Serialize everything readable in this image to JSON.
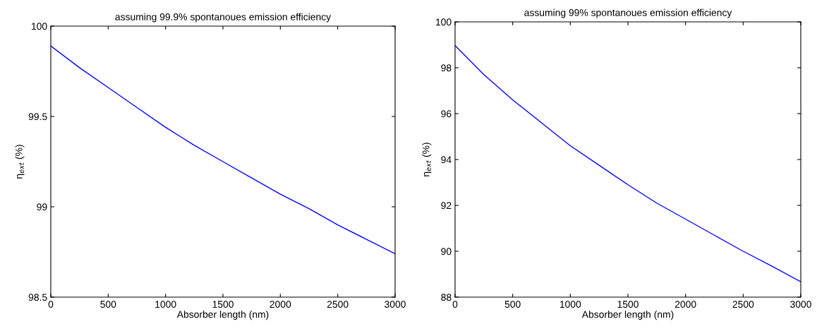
{
  "chart_data": [
    {
      "type": "line",
      "title": "assuming 99.9% spontanoues emission efficiency",
      "xlabel": "Absorber length (nm)",
      "ylabel": "η$_{ext}$ (%)",
      "x": [
        0,
        250,
        500,
        750,
        1000,
        1250,
        1500,
        1750,
        2000,
        2250,
        2500,
        2750,
        3000
      ],
      "series": [
        {
          "color": "#0000ff",
          "values": [
            99.89,
            99.77,
            99.66,
            99.55,
            99.44,
            99.34,
            99.25,
            99.16,
            99.07,
            98.99,
            98.9,
            98.82,
            98.74
          ]
        }
      ],
      "xlim": [
        0,
        3000
      ],
      "xticks": [
        0,
        500,
        1000,
        1500,
        2000,
        2500,
        3000
      ],
      "ylim": [
        98.5,
        100
      ],
      "yticks": [
        98.5,
        99,
        99.5,
        100
      ],
      "grid": false,
      "legend": false
    },
    {
      "type": "line",
      "title": "assuming 99% spontanoues emission efficiency",
      "xlabel": "Absorber length (nm)",
      "ylabel": "η$_{ext}$ (%)",
      "x": [
        0,
        250,
        500,
        750,
        1000,
        1250,
        1500,
        1750,
        2000,
        2250,
        2500,
        2750,
        3000
      ],
      "series": [
        {
          "color": "#0000ff",
          "values": [
            98.97,
            97.7,
            96.6,
            95.6,
            94.6,
            93.75,
            92.9,
            92.1,
            91.4,
            90.7,
            90.0,
            89.35,
            88.67
          ]
        }
      ],
      "xlim": [
        0,
        3000
      ],
      "xticks": [
        0,
        500,
        1000,
        1500,
        2000,
        2500,
        3000
      ],
      "ylim": [
        88,
        100
      ],
      "yticks": [
        88,
        90,
        92,
        94,
        96,
        98,
        100
      ],
      "grid": false,
      "legend": false
    }
  ]
}
